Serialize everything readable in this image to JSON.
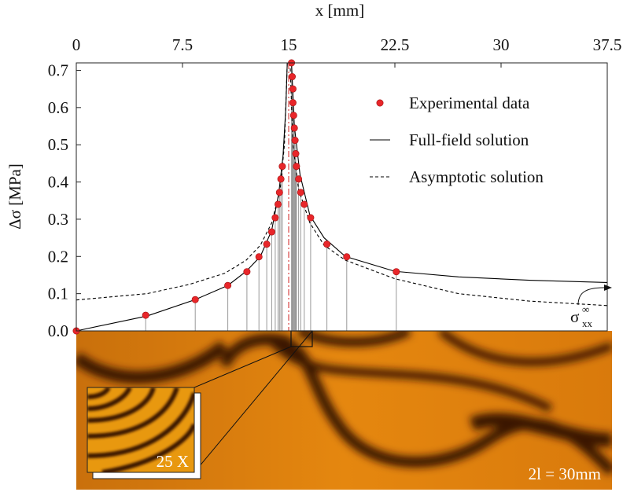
{
  "chart_data": {
    "type": "line",
    "xlabel": "x [mm]",
    "ylabel": "Δσ  [MPa]",
    "xlim": [
      0,
      37.5
    ],
    "xticks": [
      0,
      7.5,
      15,
      22.5,
      30,
      37.5
    ],
    "ylim": [
      0,
      0.72
    ],
    "yticks": [
      {
        "value": 0,
        "label": "0.0"
      },
      0.1,
      0.2,
      0.3,
      0.4,
      0.5,
      0.6,
      0.7
    ],
    "legend": "upper right",
    "series": [
      {
        "name": "Experimental data",
        "style": "markers",
        "color": "#e8262a",
        "x": [
          0,
          4.9,
          8.4,
          10.7,
          12.05,
          12.9,
          13.45,
          13.8,
          14.05,
          14.25,
          14.35,
          14.45,
          14.55,
          15.2,
          15.25,
          15.3,
          15.3,
          15.35,
          15.4,
          15.45,
          15.5,
          15.55,
          15.7,
          15.85,
          16.1,
          16.55,
          17.7,
          19.1,
          22.6
        ],
        "values": [
          0,
          0.042,
          0.084,
          0.122,
          0.159,
          0.199,
          0.233,
          0.266,
          0.304,
          0.34,
          0.372,
          0.408,
          0.442,
          0.72,
          0.683,
          0.65,
          0.613,
          0.579,
          0.545,
          0.512,
          0.476,
          0.442,
          0.408,
          0.372,
          0.34,
          0.304,
          0.233,
          0.199,
          0.159
        ]
      },
      {
        "name": "Full-field solution",
        "style": "solid",
        "color": "#000000",
        "x": [
          0,
          5,
          8.4,
          10.7,
          12,
          13,
          13.8,
          14.3,
          14.6,
          14.8,
          14.9,
          15,
          15.2,
          15.4,
          15.8,
          16.5,
          17.5,
          19,
          22.5,
          27,
          32,
          37.5
        ],
        "values": [
          0,
          0.04,
          0.084,
          0.122,
          0.16,
          0.2,
          0.27,
          0.37,
          0.47,
          0.6,
          0.72,
          null,
          0.72,
          0.55,
          0.42,
          0.31,
          0.25,
          0.2,
          0.16,
          0.145,
          0.136,
          0.13
        ]
      },
      {
        "name": "Asymptotic solution",
        "style": "dashed",
        "color": "#000000",
        "x": [
          0,
          5,
          8,
          10.5,
          12,
          13,
          13.8,
          14.4,
          14.7,
          14.9,
          15,
          15.1,
          15.3,
          15.7,
          16.5,
          17.5,
          19,
          22.5,
          27,
          32,
          37.5
        ],
        "values": [
          0.083,
          0.1,
          0.125,
          0.155,
          0.19,
          0.23,
          0.29,
          0.38,
          0.5,
          0.72,
          null,
          0.72,
          0.5,
          0.38,
          0.29,
          0.23,
          0.19,
          0.14,
          0.1,
          0.08,
          0.068
        ]
      }
    ],
    "annotation": {
      "symbol": "σ",
      "sup": "∞",
      "sub": "xx"
    },
    "photo": {
      "inset_label": "25 X",
      "scale_label": "2l = 30mm"
    }
  }
}
